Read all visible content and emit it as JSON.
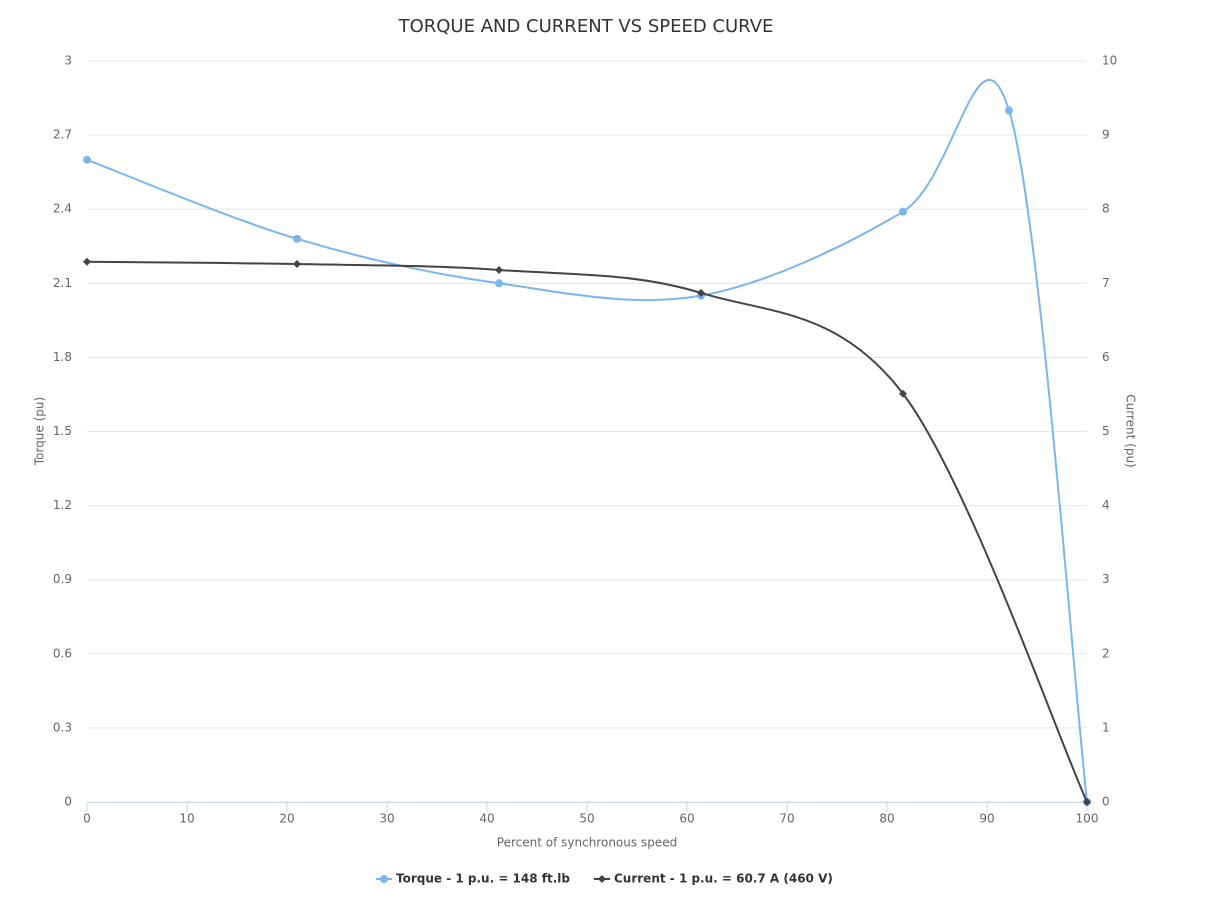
{
  "chart_data": {
    "type": "line",
    "title": "TORQUE AND CURRENT VS SPEED CURVE",
    "x_label": "Percent of synchronous speed",
    "y_label": "Torque (pu)",
    "y2_label": "Current (pu)",
    "xlim": [
      0,
      100
    ],
    "xticks": [
      0,
      10,
      20,
      30,
      40,
      50,
      60,
      70,
      80,
      90,
      100
    ],
    "ylim": [
      0,
      3
    ],
    "yticks": [
      0,
      0.3,
      0.6,
      0.9,
      1.2,
      1.5,
      1.8,
      2.1,
      2.4,
      2.7,
      3
    ],
    "y2lim": [
      0,
      10
    ],
    "y2ticks": [
      0,
      1,
      2,
      3,
      4,
      5,
      6,
      7,
      8,
      9,
      10
    ],
    "grid": true,
    "legend": "bottom",
    "series": [
      {
        "name": "Torque - 1 p.u. = 148 ft.lb",
        "color": "#7cb5ec",
        "marker": "circle",
        "x": [
          0,
          21,
          41.2,
          61.4,
          81.6,
          92.2,
          100
        ],
        "values": [
          2.6,
          2.28,
          2.1,
          2.05,
          2.39,
          2.8,
          0
        ]
      },
      {
        "name": "Current - 1 p.u. = 60.7 A (460 V)",
        "color": "#434348",
        "marker": "diamond",
        "axis": "y2",
        "x": [
          0,
          21,
          41.2,
          61.4,
          81.6,
          100
        ],
        "values": [
          7.29,
          7.26,
          7.18,
          6.87,
          5.51,
          0
        ]
      }
    ]
  }
}
